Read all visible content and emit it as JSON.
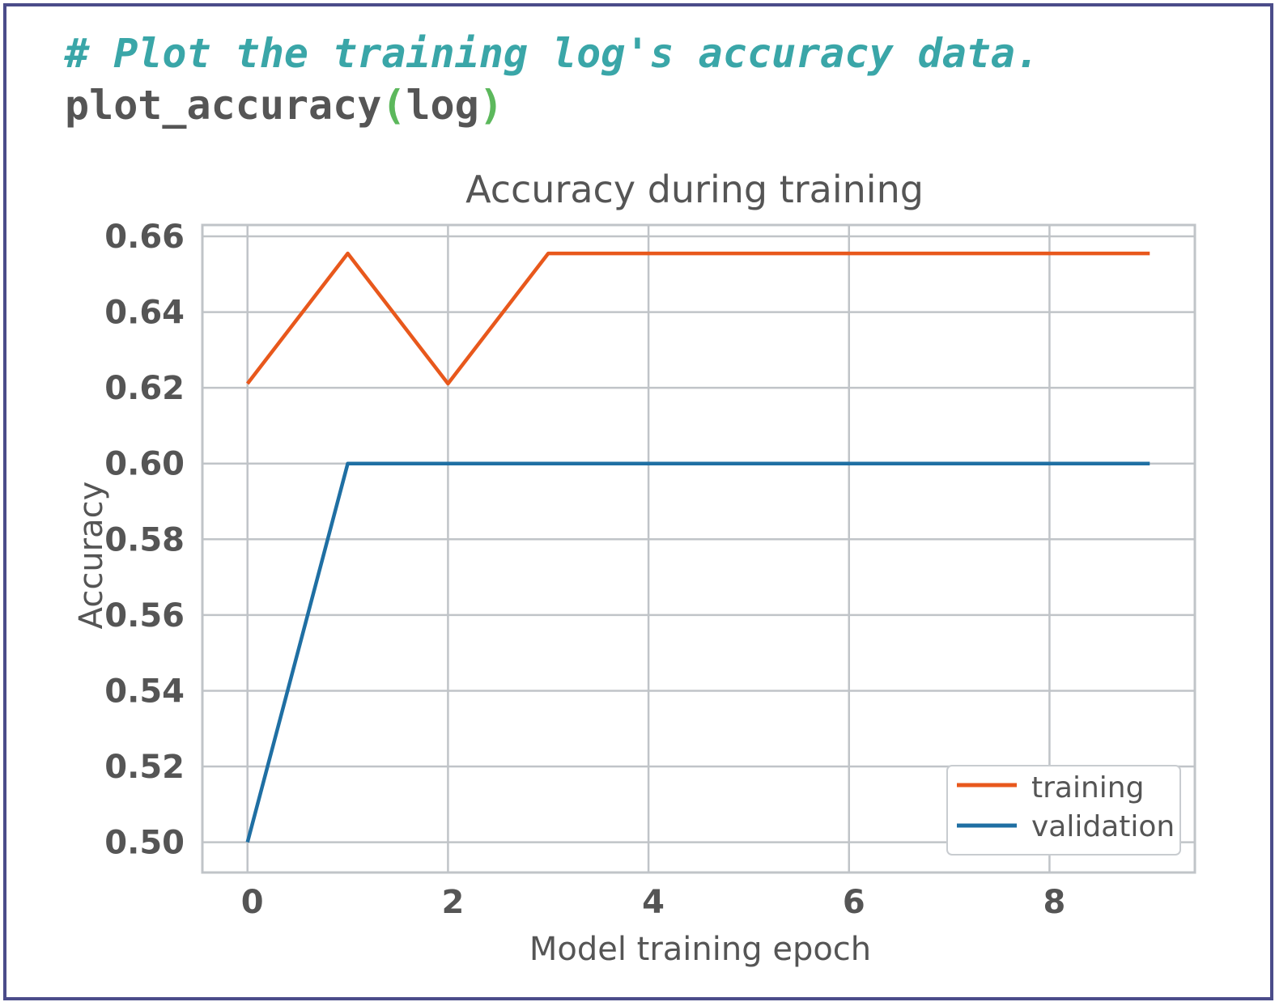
{
  "code": {
    "comment": "# Plot the training log's accuracy data.",
    "func": "plot_accuracy",
    "open_paren": "(",
    "arg": "log",
    "close_paren": ")"
  },
  "colors": {
    "training": "#e8581c",
    "validation": "#1f6fa3",
    "grid": "#c0c4c8",
    "text": "#555555",
    "comment": "#3aa6a8",
    "paren": "#5cb85c",
    "border": "#4b4c8a"
  },
  "chart_data": {
    "type": "line",
    "title": "Accuracy during training",
    "xlabel": "Model training epoch",
    "ylabel": "Accuracy",
    "x": [
      0,
      1,
      2,
      3,
      4,
      5,
      6,
      7,
      8,
      9
    ],
    "xticks": [
      "0",
      "2",
      "4",
      "6",
      "8"
    ],
    "yticks": [
      "0.50",
      "0.52",
      "0.54",
      "0.56",
      "0.58",
      "0.60",
      "0.62",
      "0.64",
      "0.66"
    ],
    "xlim": [
      -0.45,
      9.45
    ],
    "ylim": [
      0.492,
      0.663
    ],
    "grid": true,
    "legend_position": "lower-right",
    "series": [
      {
        "name": "training",
        "values": [
          0.6211,
          0.6555,
          0.6211,
          0.6555,
          0.6555,
          0.6555,
          0.6555,
          0.6555,
          0.6555,
          0.6555
        ]
      },
      {
        "name": "validation",
        "values": [
          0.5,
          0.6,
          0.6,
          0.6,
          0.6,
          0.6,
          0.6,
          0.6,
          0.6,
          0.6
        ]
      }
    ]
  }
}
